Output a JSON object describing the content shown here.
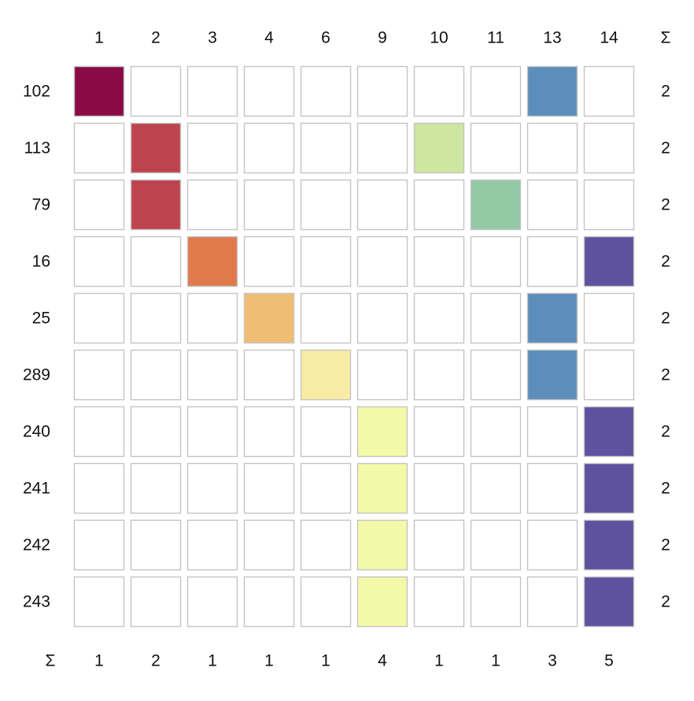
{
  "chart_data": {
    "type": "heatmap",
    "title": "",
    "xlabel": "",
    "ylabel": "",
    "columns": [
      "1",
      "2",
      "3",
      "4",
      "6",
      "9",
      "10",
      "11",
      "13",
      "14"
    ],
    "rows": [
      "102",
      "113",
      "79",
      "16",
      "25",
      "289",
      "240",
      "241",
      "242",
      "243"
    ],
    "sum_symbol": "Σ",
    "row_sums": [
      2,
      2,
      2,
      2,
      2,
      2,
      2,
      2,
      2,
      2
    ],
    "col_sums": [
      1,
      2,
      1,
      1,
      1,
      4,
      1,
      1,
      3,
      5
    ],
    "matrix": [
      [
        1,
        0,
        0,
        0,
        0,
        0,
        0,
        0,
        1,
        0
      ],
      [
        0,
        1,
        0,
        0,
        0,
        0,
        1,
        0,
        0,
        0
      ],
      [
        0,
        1,
        0,
        0,
        0,
        0,
        0,
        1,
        0,
        0
      ],
      [
        0,
        0,
        1,
        0,
        0,
        0,
        0,
        0,
        0,
        1
      ],
      [
        0,
        0,
        0,
        1,
        0,
        0,
        0,
        0,
        1,
        0
      ],
      [
        0,
        0,
        0,
        0,
        1,
        0,
        0,
        0,
        1,
        0
      ],
      [
        0,
        0,
        0,
        0,
        0,
        1,
        0,
        0,
        0,
        1
      ],
      [
        0,
        0,
        0,
        0,
        0,
        1,
        0,
        0,
        0,
        1
      ],
      [
        0,
        0,
        0,
        0,
        0,
        1,
        0,
        0,
        0,
        1
      ],
      [
        0,
        0,
        0,
        0,
        0,
        1,
        0,
        0,
        0,
        1
      ]
    ],
    "column_colors": [
      "#8a0a45",
      "#bd434f",
      "#e07a4d",
      "#f0bd74",
      "#f8eca4",
      "#f3f9a9",
      "#cde6a0",
      "#93c9a5",
      "#5d8ebb",
      "#5e519e"
    ],
    "empty_color": "#ffffff",
    "cell_border_color": "#c4c4c4"
  }
}
